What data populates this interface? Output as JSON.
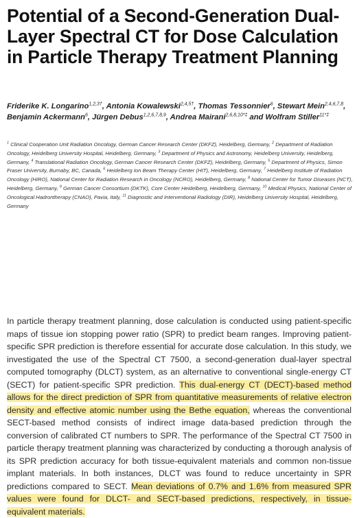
{
  "title": "Potential of a Second-Generation Dual-Layer Spectral CT for Dose Calculation in Particle Therapy Treatment Planning",
  "authors": [
    {
      "name": "Friderike K. Longarino",
      "sup": "1,2,3†",
      "sep": ", "
    },
    {
      "name": "Antonia Kowalewski",
      "sup": "2,4,5†",
      "sep": ", "
    },
    {
      "name": "Thomas Tessonnier",
      "sup": "6",
      "sep": ", "
    },
    {
      "name": "Stewart Mein",
      "sup": "2,4,6,7,8",
      "sep": ", "
    },
    {
      "name": "Benjamin Ackermann",
      "sup": "6",
      "sep": ", "
    },
    {
      "name": "Jürgen Debus",
      "sup": "1,2,6,7,8,9",
      "sep": ", "
    },
    {
      "name": "Andrea Mairani",
      "sup": "2,6,8,10*‡",
      "sep": " and "
    },
    {
      "name": "Wolfram Stiller",
      "sup": "11*‡",
      "sep": ""
    }
  ],
  "affiliations": [
    {
      "num": "1",
      "text": "Clinical Cooperation Unit Radiation Oncology, German Cancer Research Center (DKFZ), Heidelberg, Germany,"
    },
    {
      "num": "2",
      "text": "Department of Radiation Oncology, Heidelberg University Hospital, Heidelberg, Germany,"
    },
    {
      "num": "3",
      "text": "Department of Physics and Astronomy, Heidelberg University, Heidelberg, Germany,"
    },
    {
      "num": "4",
      "text": "Translational Radiation Oncology, German Cancer Research Center (DKFZ), Heidelberg, Germany,"
    },
    {
      "num": "5",
      "text": "Department of Physics, Simon Fraser University, Burnaby, BC, Canada,"
    },
    {
      "num": "6",
      "text": "Heidelberg Ion Beam Therapy Center (HIT), Heidelberg, Germany,"
    },
    {
      "num": "7",
      "text": "Heidelberg Institute of Radiation Oncology (HIRO), National Center for Radiation Research in Oncology (NCRO), Heidelberg, Germany,"
    },
    {
      "num": "8",
      "text": "National Center for Tumor Diseases (NCT), Heidelberg, Germany,"
    },
    {
      "num": "9",
      "text": "German Cancer Consortium (DKTK), Core Center Heidelberg, Heidelberg, Germany,"
    },
    {
      "num": "10",
      "text": "Medical Physics, National Center of Oncological Hadrontherapy (CNAO), Pavia, Italy,"
    },
    {
      "num": "11",
      "text": "Diagnostic and Interventional Radiology (DIR), Heidelberg University Hospital, Heidelberg, Germany"
    }
  ],
  "abstract": [
    {
      "text": "In particle therapy treatment planning, dose calculation is conducted using patient-specific maps of tissue ion stopping power ratio (SPR) to predict beam ranges. Improving patient-specific SPR prediction is therefore essential for accurate dose calculation. In this study, we investigated the use of the Spectral CT 7500, a second-generation dual-layer spectral computed tomography (DLCT) system, as an alternative to conventional single-energy CT (SECT) for patient-specific SPR prediction. ",
      "highlight": false
    },
    {
      "text": "This dual-energy CT (DECT)-based method allows for the direct prediction of SPR from quantitative measurements of relative electron density and effective atomic number using the Bethe equation,",
      "highlight": true
    },
    {
      "text": " whereas the conventional SECT-based method consists of indirect image data-based prediction through the conversion of calibrated CT numbers to SPR. The performance of the Spectral CT 7500 in particle therapy treatment planning was characterized by conducting a thorough analysis of its SPR prediction accuracy for both tissue-equivalent materials and common non-tissue implant materials. In both instances, DLCT was found to reduce uncertainty in SPR predictions compared to SECT. ",
      "highlight": false
    },
    {
      "text": "Mean deviations of 0.7% and 1.6% from measured SPR values were found for DLCT- and SECT-based predictions, respectively, in tissue-equivalent materials.",
      "highlight": true
    }
  ]
}
